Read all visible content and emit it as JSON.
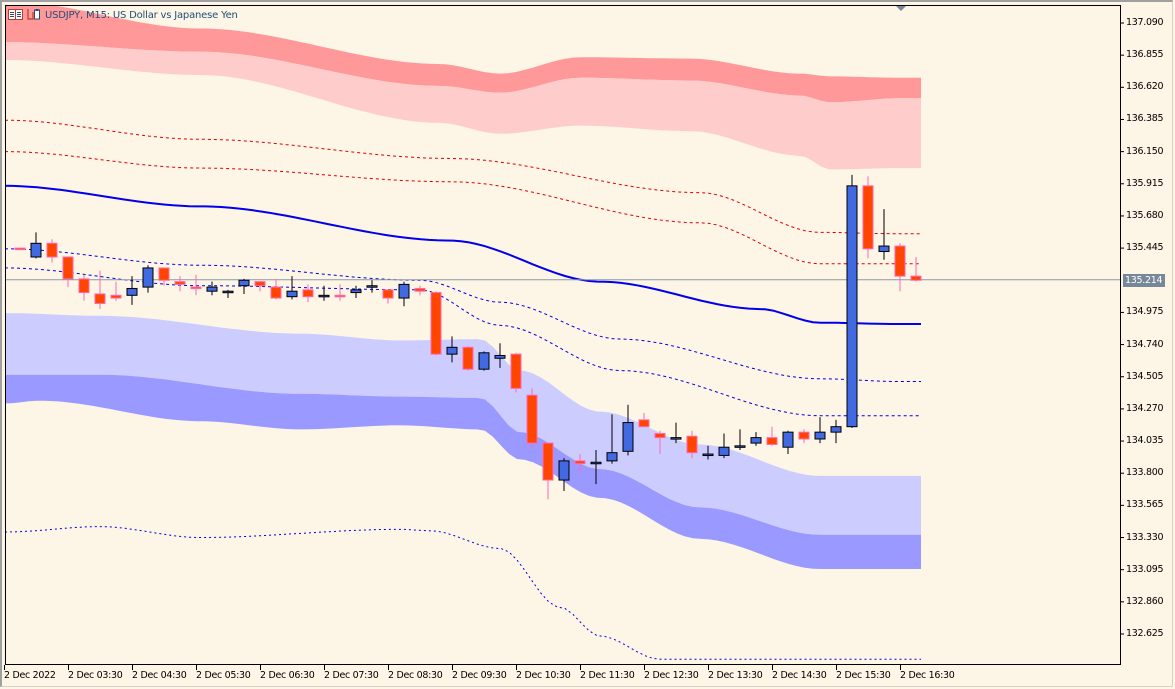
{
  "window": {
    "title": "USDJPY, M15:  US Dollar vs Japanese Yen",
    "symbol": "USDJPY",
    "timeframe": "M15",
    "description": "US Dollar vs Japanese Yen",
    "icons": [
      "chart-window-icon",
      "symbol-properties-icon"
    ]
  },
  "price_axis": {
    "labels": [
      "137.090",
      "136.855",
      "136.620",
      "136.385",
      "136.150",
      "135.915",
      "135.680",
      "135.445",
      "134.975",
      "134.740",
      "134.505",
      "134.270",
      "134.035",
      "133.800",
      "133.565",
      "133.330",
      "133.095",
      "132.860",
      "132.625"
    ],
    "current_price": "135.214",
    "current_price_color": "#778899"
  },
  "time_axis": {
    "labels": [
      "2 Dec 2022",
      "2 Dec 03:30",
      "2 Dec 04:30",
      "2 Dec 05:30",
      "2 Dec 06:30",
      "2 Dec 07:30",
      "2 Dec 08:30",
      "2 Dec 09:30",
      "2 Dec 10:30",
      "2 Dec 11:30",
      "2 Dec 12:30",
      "2 Dec 13:30",
      "2 Dec 14:30",
      "2 Dec 15:30",
      "2 Dec 16:30"
    ]
  },
  "colors": {
    "background": "#fdf5e6",
    "bull_body": "#4169e1",
    "bear_body": "#ff4500",
    "bull_wick": "#000000",
    "bear_wick": "#ff69b4",
    "upper_band_outer": "#ff9999",
    "upper_band_inner": "#ffcccc",
    "lower_band_inner": "#ccccff",
    "lower_band_outer": "#9999ff",
    "ma_line": "#0000ee",
    "upper_dotted": "#dd0000",
    "lower_dotted": "#0000dd",
    "current_price_line": "#8899aa"
  },
  "chart_data": {
    "type": "candlestick",
    "title": "USDJPY, M15: US Dollar vs Japanese Yen",
    "xlabel": "",
    "ylabel": "",
    "ylim": [
      132.45,
      137.22
    ],
    "grid": false,
    "timeframe_minutes": 15,
    "candles": [
      {
        "o": 135.445,
        "h": 135.445,
        "l": 135.445,
        "c": 135.44
      },
      {
        "o": 135.38,
        "h": 135.56,
        "l": 135.37,
        "c": 135.48
      },
      {
        "o": 135.48,
        "h": 135.51,
        "l": 135.34,
        "c": 135.38
      },
      {
        "o": 135.38,
        "h": 135.38,
        "l": 135.16,
        "c": 135.22
      },
      {
        "o": 135.22,
        "h": 135.25,
        "l": 135.06,
        "c": 135.12
      },
      {
        "o": 135.11,
        "h": 135.28,
        "l": 135.0,
        "c": 135.04
      },
      {
        "o": 135.1,
        "h": 135.2,
        "l": 135.06,
        "c": 135.08
      },
      {
        "o": 135.1,
        "h": 135.24,
        "l": 135.03,
        "c": 135.15
      },
      {
        "o": 135.16,
        "h": 135.32,
        "l": 135.12,
        "c": 135.3
      },
      {
        "o": 135.3,
        "h": 135.3,
        "l": 135.17,
        "c": 135.21
      },
      {
        "o": 135.2,
        "h": 135.24,
        "l": 135.13,
        "c": 135.18
      },
      {
        "o": 135.16,
        "h": 135.25,
        "l": 135.1,
        "c": 135.15
      },
      {
        "o": 135.13,
        "h": 135.2,
        "l": 135.1,
        "c": 135.16
      },
      {
        "o": 135.13,
        "h": 135.14,
        "l": 135.08,
        "c": 135.13
      },
      {
        "o": 135.17,
        "h": 135.22,
        "l": 135.11,
        "c": 135.21
      },
      {
        "o": 135.2,
        "h": 135.2,
        "l": 135.13,
        "c": 135.17
      },
      {
        "o": 135.16,
        "h": 135.22,
        "l": 135.07,
        "c": 135.08
      },
      {
        "o": 135.09,
        "h": 135.24,
        "l": 135.07,
        "c": 135.13
      },
      {
        "o": 135.14,
        "h": 135.18,
        "l": 135.05,
        "c": 135.09
      },
      {
        "o": 135.1,
        "h": 135.17,
        "l": 135.06,
        "c": 135.1
      },
      {
        "o": 135.1,
        "h": 135.18,
        "l": 135.06,
        "c": 135.09
      },
      {
        "o": 135.12,
        "h": 135.17,
        "l": 135.08,
        "c": 135.14
      },
      {
        "o": 135.17,
        "h": 135.21,
        "l": 135.12,
        "c": 135.17
      },
      {
        "o": 135.14,
        "h": 135.14,
        "l": 135.04,
        "c": 135.08
      },
      {
        "o": 135.08,
        "h": 135.2,
        "l": 135.02,
        "c": 135.18
      },
      {
        "o": 135.15,
        "h": 135.17,
        "l": 135.1,
        "c": 135.13
      },
      {
        "o": 135.12,
        "h": 135.13,
        "l": 134.66,
        "c": 134.67
      },
      {
        "o": 134.67,
        "h": 134.8,
        "l": 134.61,
        "c": 134.72
      },
      {
        "o": 134.72,
        "h": 134.73,
        "l": 134.55,
        "c": 134.56
      },
      {
        "o": 134.56,
        "h": 134.69,
        "l": 134.55,
        "c": 134.68
      },
      {
        "o": 134.64,
        "h": 134.75,
        "l": 134.57,
        "c": 134.66
      },
      {
        "o": 134.67,
        "h": 134.68,
        "l": 134.39,
        "c": 134.42
      },
      {
        "o": 134.37,
        "h": 134.42,
        "l": 133.98,
        "c": 134.02
      },
      {
        "o": 134.02,
        "h": 134.02,
        "l": 133.61,
        "c": 133.75
      },
      {
        "o": 133.75,
        "h": 133.91,
        "l": 133.67,
        "c": 133.89
      },
      {
        "o": 133.89,
        "h": 133.94,
        "l": 133.8,
        "c": 133.87
      },
      {
        "o": 133.88,
        "h": 133.97,
        "l": 133.72,
        "c": 133.88
      },
      {
        "o": 133.89,
        "h": 134.23,
        "l": 133.87,
        "c": 133.95
      },
      {
        "o": 133.96,
        "h": 134.3,
        "l": 133.93,
        "c": 134.17
      },
      {
        "o": 134.19,
        "h": 134.24,
        "l": 134.14,
        "c": 134.14
      },
      {
        "o": 134.09,
        "h": 134.11,
        "l": 133.94,
        "c": 134.06
      },
      {
        "o": 134.06,
        "h": 134.17,
        "l": 134.02,
        "c": 134.06
      },
      {
        "o": 134.07,
        "h": 134.11,
        "l": 133.91,
        "c": 133.95
      },
      {
        "o": 133.94,
        "h": 134.0,
        "l": 133.9,
        "c": 133.94
      },
      {
        "o": 133.93,
        "h": 134.09,
        "l": 133.91,
        "c": 133.99
      },
      {
        "o": 134.0,
        "h": 134.12,
        "l": 133.97,
        "c": 134.0
      },
      {
        "o": 134.02,
        "h": 134.1,
        "l": 134.0,
        "c": 134.06
      },
      {
        "o": 134.06,
        "h": 134.14,
        "l": 134.0,
        "c": 134.01
      },
      {
        "o": 133.99,
        "h": 134.11,
        "l": 133.94,
        "c": 134.1
      },
      {
        "o": 134.1,
        "h": 134.12,
        "l": 134.02,
        "c": 134.05
      },
      {
        "o": 134.05,
        "h": 134.21,
        "l": 134.02,
        "c": 134.1
      },
      {
        "o": 134.1,
        "h": 134.19,
        "l": 134.02,
        "c": 134.14
      },
      {
        "o": 134.14,
        "h": 135.98,
        "l": 134.13,
        "c": 135.9
      },
      {
        "o": 135.9,
        "h": 135.97,
        "l": 135.37,
        "c": 135.44
      },
      {
        "o": 135.42,
        "h": 135.73,
        "l": 135.36,
        "c": 135.46
      },
      {
        "o": 135.46,
        "h": 135.48,
        "l": 135.13,
        "c": 135.24
      },
      {
        "o": 135.24,
        "h": 135.38,
        "l": 135.2,
        "c": 135.21
      }
    ],
    "indicators": [
      {
        "name": "Moving Average (solid blue)",
        "start": 135.9,
        "end": 134.89
      },
      {
        "name": "Upper dotted red 1",
        "start": 136.38,
        "end": 135.53
      },
      {
        "name": "Upper dotted red 2",
        "start": 136.16,
        "end": 135.32
      },
      {
        "name": "Lower dotted blue 1",
        "start": 135.44,
        "end": 134.46
      },
      {
        "name": "Lower dotted blue 2",
        "start": 135.3,
        "end": 134.21
      },
      {
        "name": "Lower dotted blue 3",
        "start": 133.37,
        "end": 132.45
      },
      {
        "name": "Upper band (pink)",
        "range_start": [
          136.6,
          137.2
        ],
        "range_end": [
          136.01,
          136.69
        ]
      },
      {
        "name": "Lower band (lavender/blue)",
        "range_start": [
          134.32,
          134.97
        ],
        "range_end": [
          133.09,
          133.78
        ]
      }
    ]
  }
}
